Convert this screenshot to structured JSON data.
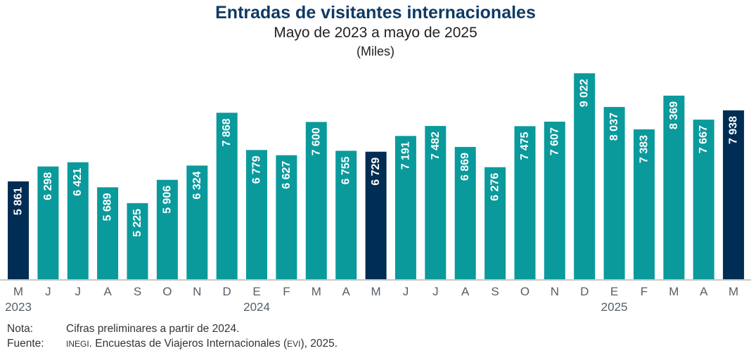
{
  "chart_data": {
    "type": "bar",
    "title": "Entradas de visitantes internacionales",
    "subtitle": "Mayo de 2023 a mayo de 2025",
    "units": "(Miles)",
    "xlabel": "",
    "ylabel": "",
    "ylim": [
      3000,
      9500
    ],
    "grid": false,
    "categories": [
      "M",
      "J",
      "J",
      "A",
      "S",
      "O",
      "N",
      "D",
      "E",
      "F",
      "M",
      "A",
      "M",
      "J",
      "J",
      "A",
      "S",
      "O",
      "N",
      "D",
      "E",
      "F",
      "M",
      "A",
      "M"
    ],
    "years": [
      {
        "label": "2023",
        "index": 0
      },
      {
        "label": "2024",
        "index": 8
      },
      {
        "label": "2025",
        "index": 20
      }
    ],
    "values": [
      5861,
      6298,
      6421,
      5689,
      5225,
      5906,
      6324,
      7868,
      6779,
      6627,
      7600,
      6755,
      6729,
      7191,
      7482,
      6869,
      6276,
      7475,
      7607,
      9022,
      8037,
      7383,
      8369,
      7667,
      7938
    ],
    "value_labels": [
      "5 861",
      "6 298",
      "6 421",
      "5 689",
      "5 225",
      "5 906",
      "6 324",
      "7 868",
      "6 779",
      "6 627",
      "7 600",
      "6 755",
      "6 729",
      "7 191",
      "7 482",
      "6 869",
      "6 276",
      "7 475",
      "7 607",
      "9 022",
      "8 037",
      "7 383",
      "8 369",
      "7 667",
      "7 938"
    ],
    "highlight_indices": [
      0,
      12,
      24
    ],
    "colors": {
      "bar": "#0a9a9c",
      "highlight": "#002d54",
      "axis": "#c8c8c8",
      "tick_text": "#555e66",
      "label_text": "#ffffff"
    }
  },
  "notes": {
    "nota_label": "Nota:",
    "nota_text": "Cifras preliminares a partir de 2024.",
    "fuente_label": "Fuente:",
    "fuente_org": "INEGI",
    "fuente_text_1": ". Encuestas de Viajeros Internacionales (",
    "fuente_abbr": "EVI",
    "fuente_text_2": "), 2025."
  }
}
